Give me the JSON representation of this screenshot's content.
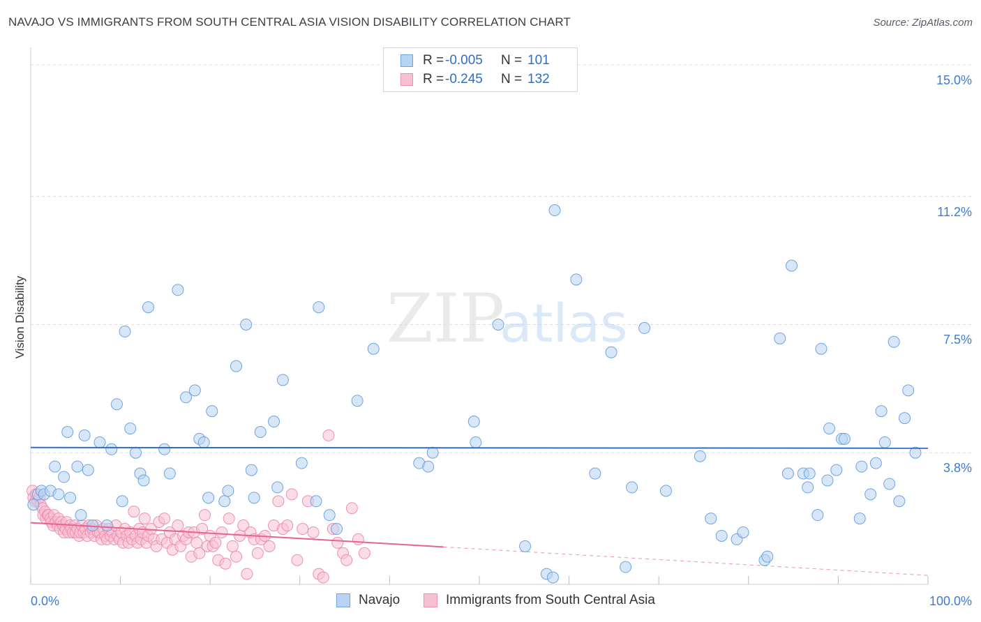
{
  "title": "NAVAJO VS IMMIGRANTS FROM SOUTH CENTRAL ASIA VISION DISABILITY CORRELATION CHART",
  "source": "Source: ZipAtlas.com",
  "watermark": {
    "zip": "ZIP",
    "atlas": "atlas"
  },
  "legend": [
    {
      "r_label": "R =",
      "r_value": "-0.005",
      "n_label": "N =",
      "n_value": "101"
    },
    {
      "r_label": "R =",
      "r_value": "-0.245",
      "n_label": "N =",
      "n_value": "132"
    }
  ],
  "colors": {
    "navajo_fill": "#b8d3f3",
    "navajo_stroke": "#6ea3e0",
    "navajo_line": "#2f6ec7",
    "asia_fill": "#f7c1d3",
    "asia_stroke": "#ee8fb0",
    "asia_line": "#e8628f",
    "tick_text": "#3d7bd0",
    "grid": "#dddddd"
  },
  "chart_data": {
    "type": "scatter",
    "title": "NAVAJO VS IMMIGRANTS FROM SOUTH CENTRAL ASIA VISION DISABILITY CORRELATION CHART",
    "xlabel": "",
    "ylabel": "Vision Disability",
    "xlim": [
      0,
      100
    ],
    "ylim": [
      0,
      15.3
    ],
    "x_tick_labels": [
      "0.0%",
      "100.0%"
    ],
    "y_ticks": [
      3.8,
      7.5,
      11.2,
      15.0
    ],
    "y_tick_labels": [
      "3.8%",
      "7.5%",
      "11.2%",
      "15.0%"
    ],
    "series": [
      {
        "name": "Navajo",
        "trend": {
          "x": [
            0,
            100
          ],
          "y": [
            3.95,
            3.93
          ],
          "extrapolated_to": 100
        },
        "points": [
          [
            0.3,
            2.3
          ],
          [
            0.8,
            2.6
          ],
          [
            1.2,
            2.7
          ],
          [
            1.5,
            2.6
          ],
          [
            2.2,
            2.7
          ],
          [
            2.7,
            3.4
          ],
          [
            3.1,
            2.6
          ],
          [
            3.7,
            3.1
          ],
          [
            4.1,
            4.4
          ],
          [
            4.4,
            2.5
          ],
          [
            5.2,
            3.4
          ],
          [
            5.6,
            2.0
          ],
          [
            6.0,
            4.3
          ],
          [
            6.4,
            3.3
          ],
          [
            6.9,
            1.7
          ],
          [
            7.7,
            4.1
          ],
          [
            8.5,
            1.7
          ],
          [
            9.0,
            3.9
          ],
          [
            9.6,
            5.2
          ],
          [
            10.2,
            2.4
          ],
          [
            10.5,
            7.3
          ],
          [
            11.1,
            4.5
          ],
          [
            11.7,
            3.8
          ],
          [
            12.2,
            3.2
          ],
          [
            12.6,
            3.0
          ],
          [
            13.1,
            8.0
          ],
          [
            14.9,
            3.9
          ],
          [
            15.5,
            3.2
          ],
          [
            16.4,
            8.5
          ],
          [
            17.3,
            5.4
          ],
          [
            18.3,
            5.6
          ],
          [
            18.8,
            4.2
          ],
          [
            19.3,
            4.1
          ],
          [
            19.8,
            2.5
          ],
          [
            20.2,
            5.0
          ],
          [
            21.6,
            2.4
          ],
          [
            22.0,
            2.7
          ],
          [
            22.9,
            6.3
          ],
          [
            24.0,
            7.5
          ],
          [
            24.6,
            3.3
          ],
          [
            24.9,
            2.5
          ],
          [
            25.6,
            4.4
          ],
          [
            27.1,
            4.7
          ],
          [
            27.5,
            2.8
          ],
          [
            28.1,
            5.9
          ],
          [
            30.2,
            3.5
          ],
          [
            31.8,
            2.4
          ],
          [
            32.1,
            8.0
          ],
          [
            33.3,
            2.0
          ],
          [
            34.1,
            1.6
          ],
          [
            36.4,
            5.3
          ],
          [
            38.2,
            6.8
          ],
          [
            43.3,
            3.5
          ],
          [
            44.3,
            3.4
          ],
          [
            44.8,
            3.8
          ],
          [
            49.4,
            4.7
          ],
          [
            49.6,
            4.1
          ],
          [
            52.1,
            7.5
          ],
          [
            55.1,
            1.1
          ],
          [
            57.5,
            0.3
          ],
          [
            58.2,
            0.2
          ],
          [
            58.4,
            10.8
          ],
          [
            60.8,
            8.8
          ],
          [
            62.9,
            3.2
          ],
          [
            64.7,
            6.7
          ],
          [
            66.3,
            0.5
          ],
          [
            67.0,
            2.8
          ],
          [
            68.4,
            7.4
          ],
          [
            70.8,
            2.7
          ],
          [
            74.6,
            3.7
          ],
          [
            75.8,
            1.9
          ],
          [
            77.0,
            1.4
          ],
          [
            78.7,
            1.3
          ],
          [
            79.4,
            1.5
          ],
          [
            81.8,
            0.7
          ],
          [
            82.1,
            0.8
          ],
          [
            83.5,
            7.1
          ],
          [
            84.4,
            3.2
          ],
          [
            84.8,
            9.2
          ],
          [
            86.1,
            3.2
          ],
          [
            86.6,
            2.8
          ],
          [
            86.8,
            3.2
          ],
          [
            87.7,
            2.0
          ],
          [
            88.1,
            6.8
          ],
          [
            88.8,
            3.0
          ],
          [
            89.0,
            4.5
          ],
          [
            89.8,
            3.3
          ],
          [
            90.4,
            4.2
          ],
          [
            90.7,
            4.2
          ],
          [
            92.4,
            1.9
          ],
          [
            92.6,
            3.4
          ],
          [
            93.6,
            2.6
          ],
          [
            94.2,
            3.5
          ],
          [
            94.8,
            5.0
          ],
          [
            95.2,
            4.1
          ],
          [
            95.7,
            2.9
          ],
          [
            96.2,
            7.0
          ],
          [
            96.8,
            2.4
          ],
          [
            97.4,
            4.8
          ],
          [
            97.8,
            5.6
          ],
          [
            98.6,
            3.8
          ]
        ]
      },
      {
        "name": "Immigrants from South Central Asia",
        "trend": {
          "x": [
            0,
            46
          ],
          "y": [
            1.78,
            1.08
          ],
          "extrapolated_to": 100
        },
        "points": [
          [
            0.2,
            2.7
          ],
          [
            0.3,
            2.5
          ],
          [
            0.5,
            2.4
          ],
          [
            0.6,
            2.6
          ],
          [
            0.8,
            2.4
          ],
          [
            1.0,
            2.5
          ],
          [
            1.1,
            2.3
          ],
          [
            1.3,
            2.2
          ],
          [
            1.4,
            2.0
          ],
          [
            1.6,
            2.1
          ],
          [
            1.7,
            1.9
          ],
          [
            1.9,
            2.0
          ],
          [
            2.0,
            2.0
          ],
          [
            2.2,
            1.9
          ],
          [
            2.3,
            1.8
          ],
          [
            2.5,
            1.7
          ],
          [
            2.6,
            2.0
          ],
          [
            2.8,
            1.8
          ],
          [
            3.0,
            1.7
          ],
          [
            3.1,
            1.9
          ],
          [
            3.3,
            1.6
          ],
          [
            3.4,
            1.8
          ],
          [
            3.6,
            1.7
          ],
          [
            3.7,
            1.5
          ],
          [
            3.9,
            1.6
          ],
          [
            4.0,
            1.8
          ],
          [
            4.2,
            1.5
          ],
          [
            4.4,
            1.7
          ],
          [
            4.5,
            1.6
          ],
          [
            4.7,
            1.5
          ],
          [
            4.9,
            1.7
          ],
          [
            5.0,
            1.5
          ],
          [
            5.2,
            1.6
          ],
          [
            5.4,
            1.4
          ],
          [
            5.5,
            1.5
          ],
          [
            5.7,
            1.7
          ],
          [
            5.9,
            1.5
          ],
          [
            6.1,
            1.6
          ],
          [
            6.3,
            1.4
          ],
          [
            6.5,
            1.7
          ],
          [
            6.7,
            1.5
          ],
          [
            6.9,
            1.6
          ],
          [
            7.1,
            1.4
          ],
          [
            7.3,
            1.7
          ],
          [
            7.5,
            1.5
          ],
          [
            7.7,
            1.5
          ],
          [
            7.9,
            1.3
          ],
          [
            8.1,
            1.6
          ],
          [
            8.3,
            1.4
          ],
          [
            8.5,
            1.3
          ],
          [
            8.7,
            1.6
          ],
          [
            8.9,
            1.4
          ],
          [
            9.1,
            1.5
          ],
          [
            9.3,
            1.3
          ],
          [
            9.5,
            1.7
          ],
          [
            9.7,
            1.4
          ],
          [
            9.9,
            1.3
          ],
          [
            10.1,
            1.5
          ],
          [
            10.3,
            1.2
          ],
          [
            10.5,
            1.6
          ],
          [
            10.7,
            1.4
          ],
          [
            10.9,
            1.2
          ],
          [
            11.1,
            1.5
          ],
          [
            11.3,
            1.3
          ],
          [
            11.5,
            2.1
          ],
          [
            11.7,
            1.4
          ],
          [
            11.9,
            1.2
          ],
          [
            12.1,
            1.6
          ],
          [
            12.3,
            1.3
          ],
          [
            12.5,
            1.5
          ],
          [
            12.7,
            1.9
          ],
          [
            12.9,
            1.2
          ],
          [
            13.1,
            1.4
          ],
          [
            13.4,
            1.6
          ],
          [
            13.7,
            1.3
          ],
          [
            14.0,
            1.1
          ],
          [
            14.3,
            1.8
          ],
          [
            14.6,
            1.3
          ],
          [
            14.9,
            1.9
          ],
          [
            15.2,
            1.2
          ],
          [
            15.5,
            1.5
          ],
          [
            15.8,
            1.0
          ],
          [
            16.1,
            1.3
          ],
          [
            16.4,
            1.7
          ],
          [
            16.7,
            1.1
          ],
          [
            17.0,
            1.4
          ],
          [
            17.3,
            1.3
          ],
          [
            17.6,
            1.5
          ],
          [
            17.9,
            0.8
          ],
          [
            18.2,
            1.5
          ],
          [
            18.5,
            1.2
          ],
          [
            18.8,
            0.9
          ],
          [
            19.1,
            1.6
          ],
          [
            19.4,
            2.0
          ],
          [
            19.7,
            1.1
          ],
          [
            20.0,
            1.4
          ],
          [
            20.3,
            1.1
          ],
          [
            20.6,
            1.2
          ],
          [
            20.9,
            0.7
          ],
          [
            21.3,
            1.5
          ],
          [
            21.7,
            0.6
          ],
          [
            22.1,
            1.9
          ],
          [
            22.5,
            1.1
          ],
          [
            22.9,
            0.8
          ],
          [
            23.3,
            1.4
          ],
          [
            23.7,
            1.7
          ],
          [
            24.1,
            0.3
          ],
          [
            24.5,
            1.5
          ],
          [
            24.9,
            1.3
          ],
          [
            25.3,
            0.9
          ],
          [
            25.7,
            1.3
          ],
          [
            26.1,
            1.4
          ],
          [
            26.6,
            1.1
          ],
          [
            27.1,
            1.7
          ],
          [
            27.6,
            2.4
          ],
          [
            28.1,
            1.6
          ],
          [
            28.6,
            1.7
          ],
          [
            29.1,
            2.6
          ],
          [
            29.7,
            0.7
          ],
          [
            30.3,
            1.6
          ],
          [
            30.9,
            2.4
          ],
          [
            31.5,
            1.5
          ],
          [
            32.1,
            0.3
          ],
          [
            32.6,
            0.2
          ],
          [
            33.2,
            4.3
          ],
          [
            33.7,
            1.6
          ],
          [
            34.2,
            1.2
          ],
          [
            34.8,
            0.9
          ],
          [
            35.2,
            0.7
          ],
          [
            35.8,
            2.2
          ],
          [
            36.5,
            1.3
          ],
          [
            37.2,
            0.9
          ]
        ]
      }
    ]
  },
  "bottom_legend": [
    "Navajo",
    "Immigrants from South Central Asia"
  ]
}
